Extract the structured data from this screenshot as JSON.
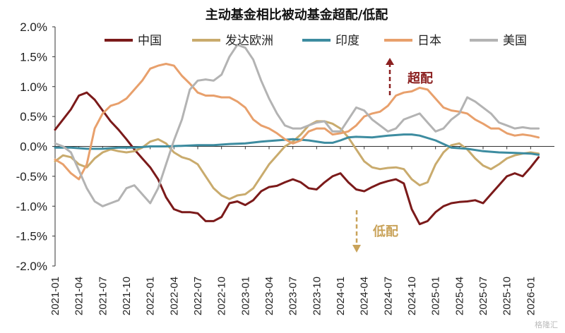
{
  "chart_data": {
    "type": "line",
    "title": "主动基金相比被动基金超配/低配",
    "xlabel": "",
    "ylabel": "",
    "ylim": [
      -2.0,
      2.0
    ],
    "yticks": [
      "2.0%",
      "1.5%",
      "1.0%",
      "0.5%",
      "0.0%",
      "-0.5%",
      "-1.0%",
      "-1.5%",
      "-2.0%"
    ],
    "ytick_values": [
      2.0,
      1.5,
      1.0,
      0.5,
      0.0,
      -0.5,
      -1.0,
      -1.5,
      -2.0
    ],
    "x_tick_labels": [
      "2021-01",
      "2021-04",
      "2021-07",
      "2021-10",
      "2022-01",
      "2022-04",
      "2022-07",
      "2022-10",
      "2023-01",
      "2023-04",
      "2023-07",
      "2023-10",
      "2024-01",
      "2024-04",
      "2024-07",
      "2024-10",
      "2025-01",
      "2025-04",
      "2025-07",
      "2025-10",
      "2026-01"
    ],
    "x_range": [
      0,
      63
    ],
    "legend_position": "top",
    "series": [
      {
        "name": "中国",
        "color": "#7b1a1a",
        "points": [
          [
            0,
            0.28
          ],
          [
            1,
            0.45
          ],
          [
            2,
            0.62
          ],
          [
            3,
            0.85
          ],
          [
            4,
            0.9
          ],
          [
            5,
            0.78
          ],
          [
            6,
            0.6
          ],
          [
            7,
            0.42
          ],
          [
            8,
            0.28
          ],
          [
            9,
            0.12
          ],
          [
            10,
            -0.05
          ],
          [
            11,
            -0.2
          ],
          [
            12,
            -0.35
          ],
          [
            13,
            -0.55
          ],
          [
            14,
            -0.85
          ],
          [
            15,
            -1.05
          ],
          [
            16,
            -1.1
          ],
          [
            17,
            -1.1
          ],
          [
            18,
            -1.12
          ],
          [
            19,
            -1.25
          ],
          [
            20,
            -1.25
          ],
          [
            21,
            -1.18
          ],
          [
            22,
            -0.95
          ],
          [
            23,
            -0.92
          ],
          [
            24,
            -0.98
          ],
          [
            25,
            -0.9
          ],
          [
            26,
            -0.75
          ],
          [
            27,
            -0.68
          ],
          [
            28,
            -0.66
          ],
          [
            29,
            -0.6
          ],
          [
            30,
            -0.55
          ],
          [
            31,
            -0.6
          ],
          [
            32,
            -0.7
          ],
          [
            33,
            -0.72
          ],
          [
            34,
            -0.6
          ],
          [
            35,
            -0.5
          ],
          [
            36,
            -0.45
          ],
          [
            37,
            -0.6
          ],
          [
            38,
            -0.72
          ],
          [
            39,
            -0.75
          ],
          [
            40,
            -0.68
          ],
          [
            41,
            -0.62
          ],
          [
            42,
            -0.58
          ],
          [
            43,
            -0.55
          ],
          [
            44,
            -0.62
          ],
          [
            45,
            -1.05
          ],
          [
            46,
            -1.3
          ],
          [
            47,
            -1.25
          ],
          [
            48,
            -1.1
          ],
          [
            49,
            -1.0
          ],
          [
            50,
            -0.95
          ],
          [
            51,
            -0.93
          ],
          [
            52,
            -0.92
          ],
          [
            53,
            -0.9
          ],
          [
            54,
            -0.95
          ],
          [
            55,
            -0.8
          ],
          [
            56,
            -0.65
          ],
          [
            57,
            -0.5
          ],
          [
            58,
            -0.45
          ],
          [
            59,
            -0.5
          ],
          [
            60,
            -0.35
          ],
          [
            61,
            -0.18
          ]
        ]
      },
      {
        "name": "发达欧洲",
        "color": "#c9ab6d",
        "points": [
          [
            0,
            -0.25
          ],
          [
            1,
            -0.15
          ],
          [
            2,
            -0.18
          ],
          [
            3,
            -0.3
          ],
          [
            4,
            -0.35
          ],
          [
            5,
            -0.2
          ],
          [
            6,
            -0.1
          ],
          [
            7,
            -0.05
          ],
          [
            8,
            -0.08
          ],
          [
            9,
            -0.1
          ],
          [
            10,
            -0.08
          ],
          [
            11,
            -0.02
          ],
          [
            12,
            0.08
          ],
          [
            13,
            0.12
          ],
          [
            14,
            0.05
          ],
          [
            15,
            -0.1
          ],
          [
            16,
            -0.18
          ],
          [
            17,
            -0.22
          ],
          [
            18,
            -0.3
          ],
          [
            19,
            -0.5
          ],
          [
            20,
            -0.7
          ],
          [
            21,
            -0.82
          ],
          [
            22,
            -0.88
          ],
          [
            23,
            -0.82
          ],
          [
            24,
            -0.8
          ],
          [
            25,
            -0.7
          ],
          [
            26,
            -0.5
          ],
          [
            27,
            -0.3
          ],
          [
            28,
            -0.15
          ],
          [
            29,
            0.0
          ],
          [
            30,
            0.08
          ],
          [
            31,
            0.2
          ],
          [
            32,
            0.35
          ],
          [
            33,
            0.42
          ],
          [
            34,
            0.42
          ],
          [
            35,
            0.38
          ],
          [
            36,
            0.3
          ],
          [
            37,
            0.15
          ],
          [
            38,
            -0.05
          ],
          [
            39,
            -0.25
          ],
          [
            40,
            -0.35
          ],
          [
            41,
            -0.38
          ],
          [
            42,
            -0.36
          ],
          [
            43,
            -0.35
          ],
          [
            44,
            -0.38
          ],
          [
            45,
            -0.55
          ],
          [
            46,
            -0.65
          ],
          [
            47,
            -0.6
          ],
          [
            48,
            -0.3
          ],
          [
            49,
            -0.1
          ],
          [
            50,
            0.02
          ],
          [
            51,
            0.05
          ],
          [
            52,
            -0.05
          ],
          [
            53,
            -0.2
          ],
          [
            54,
            -0.32
          ],
          [
            55,
            -0.38
          ],
          [
            56,
            -0.3
          ],
          [
            57,
            -0.2
          ],
          [
            58,
            -0.15
          ],
          [
            59,
            -0.12
          ],
          [
            60,
            -0.1
          ],
          [
            61,
            -0.12
          ]
        ]
      },
      {
        "name": "印度",
        "color": "#3d8ca0",
        "points": [
          [
            0,
            -0.02
          ],
          [
            2,
            -0.02
          ],
          [
            4,
            -0.04
          ],
          [
            6,
            -0.04
          ],
          [
            8,
            -0.02
          ],
          [
            10,
            -0.02
          ],
          [
            12,
            0.0
          ],
          [
            14,
            0.0
          ],
          [
            16,
            0.01
          ],
          [
            18,
            0.02
          ],
          [
            20,
            0.02
          ],
          [
            22,
            0.04
          ],
          [
            24,
            0.05
          ],
          [
            26,
            0.08
          ],
          [
            28,
            0.1
          ],
          [
            30,
            0.12
          ],
          [
            32,
            0.1
          ],
          [
            34,
            0.06
          ],
          [
            35,
            0.06
          ],
          [
            36,
            0.1
          ],
          [
            37,
            0.15
          ],
          [
            38,
            0.16
          ],
          [
            40,
            0.15
          ],
          [
            42,
            0.18
          ],
          [
            44,
            0.2
          ],
          [
            45,
            0.2
          ],
          [
            46,
            0.18
          ],
          [
            48,
            0.1
          ],
          [
            50,
            -0.02
          ],
          [
            52,
            -0.04
          ],
          [
            54,
            -0.08
          ],
          [
            56,
            -0.1
          ],
          [
            58,
            -0.11
          ],
          [
            60,
            -0.12
          ],
          [
            61,
            -0.14
          ]
        ]
      },
      {
        "name": "日本",
        "color": "#e8a06c",
        "points": [
          [
            0,
            -0.22
          ],
          [
            1,
            -0.3
          ],
          [
            2,
            -0.45
          ],
          [
            3,
            -0.55
          ],
          [
            4,
            -0.3
          ],
          [
            5,
            0.3
          ],
          [
            6,
            0.55
          ],
          [
            7,
            0.68
          ],
          [
            8,
            0.72
          ],
          [
            9,
            0.8
          ],
          [
            10,
            0.95
          ],
          [
            11,
            1.1
          ],
          [
            12,
            1.3
          ],
          [
            13,
            1.35
          ],
          [
            14,
            1.38
          ],
          [
            15,
            1.35
          ],
          [
            16,
            1.18
          ],
          [
            17,
            1.05
          ],
          [
            18,
            0.9
          ],
          [
            19,
            0.85
          ],
          [
            20,
            0.85
          ],
          [
            21,
            0.82
          ],
          [
            22,
            0.82
          ],
          [
            23,
            0.75
          ],
          [
            24,
            0.65
          ],
          [
            25,
            0.45
          ],
          [
            26,
            0.35
          ],
          [
            27,
            0.3
          ],
          [
            28,
            0.22
          ],
          [
            29,
            0.12
          ],
          [
            30,
            0.05
          ],
          [
            31,
            0.1
          ],
          [
            32,
            0.25
          ],
          [
            33,
            0.3
          ],
          [
            34,
            0.3
          ],
          [
            35,
            0.2
          ],
          [
            36,
            0.22
          ],
          [
            37,
            0.25
          ],
          [
            38,
            0.35
          ],
          [
            39,
            0.5
          ],
          [
            40,
            0.55
          ],
          [
            41,
            0.58
          ],
          [
            42,
            0.68
          ],
          [
            43,
            0.85
          ],
          [
            44,
            0.9
          ],
          [
            45,
            0.92
          ],
          [
            46,
            0.98
          ],
          [
            47,
            0.95
          ],
          [
            48,
            0.8
          ],
          [
            49,
            0.65
          ],
          [
            50,
            0.6
          ],
          [
            51,
            0.58
          ],
          [
            52,
            0.55
          ],
          [
            53,
            0.45
          ],
          [
            54,
            0.38
          ],
          [
            55,
            0.3
          ],
          [
            56,
            0.3
          ],
          [
            57,
            0.22
          ],
          [
            58,
            0.18
          ],
          [
            59,
            0.2
          ],
          [
            60,
            0.18
          ],
          [
            61,
            0.15
          ]
        ]
      },
      {
        "name": "美国",
        "color": "#b3b3b3",
        "points": [
          [
            0,
            0.05
          ],
          [
            1,
            0.0
          ],
          [
            2,
            -0.1
          ],
          [
            3,
            -0.4
          ],
          [
            4,
            -0.7
          ],
          [
            5,
            -0.92
          ],
          [
            6,
            -1.0
          ],
          [
            7,
            -0.95
          ],
          [
            8,
            -0.9
          ],
          [
            9,
            -0.7
          ],
          [
            10,
            -0.65
          ],
          [
            11,
            -0.8
          ],
          [
            12,
            -0.95
          ],
          [
            13,
            -0.7
          ],
          [
            14,
            -0.3
          ],
          [
            15,
            0.1
          ],
          [
            16,
            0.45
          ],
          [
            17,
            0.95
          ],
          [
            18,
            1.1
          ],
          [
            19,
            1.12
          ],
          [
            20,
            1.1
          ],
          [
            21,
            1.2
          ],
          [
            22,
            1.5
          ],
          [
            23,
            1.7
          ],
          [
            24,
            1.65
          ],
          [
            25,
            1.45
          ],
          [
            26,
            1.1
          ],
          [
            27,
            0.8
          ],
          [
            28,
            0.55
          ],
          [
            29,
            0.35
          ],
          [
            30,
            0.3
          ],
          [
            31,
            0.3
          ],
          [
            32,
            0.35
          ],
          [
            33,
            0.4
          ],
          [
            34,
            0.42
          ],
          [
            35,
            0.25
          ],
          [
            36,
            0.25
          ],
          [
            37,
            0.45
          ],
          [
            38,
            0.65
          ],
          [
            39,
            0.6
          ],
          [
            40,
            0.45
          ],
          [
            41,
            0.35
          ],
          [
            42,
            0.25
          ],
          [
            43,
            0.3
          ],
          [
            44,
            0.45
          ],
          [
            45,
            0.5
          ],
          [
            46,
            0.55
          ],
          [
            47,
            0.4
          ],
          [
            48,
            0.25
          ],
          [
            49,
            0.3
          ],
          [
            50,
            0.45
          ],
          [
            51,
            0.55
          ],
          [
            52,
            0.82
          ],
          [
            53,
            0.75
          ],
          [
            54,
            0.65
          ],
          [
            55,
            0.55
          ],
          [
            56,
            0.4
          ],
          [
            57,
            0.35
          ],
          [
            58,
            0.3
          ],
          [
            59,
            0.32
          ],
          [
            60,
            0.3
          ],
          [
            61,
            0.3
          ]
        ]
      }
    ],
    "annotations": [
      {
        "text": "超配",
        "color": "#8b2020",
        "arrow": "up"
      },
      {
        "text": "低配",
        "color": "#c9a35a",
        "arrow": "down"
      }
    ]
  },
  "watermark": "格隆汇"
}
